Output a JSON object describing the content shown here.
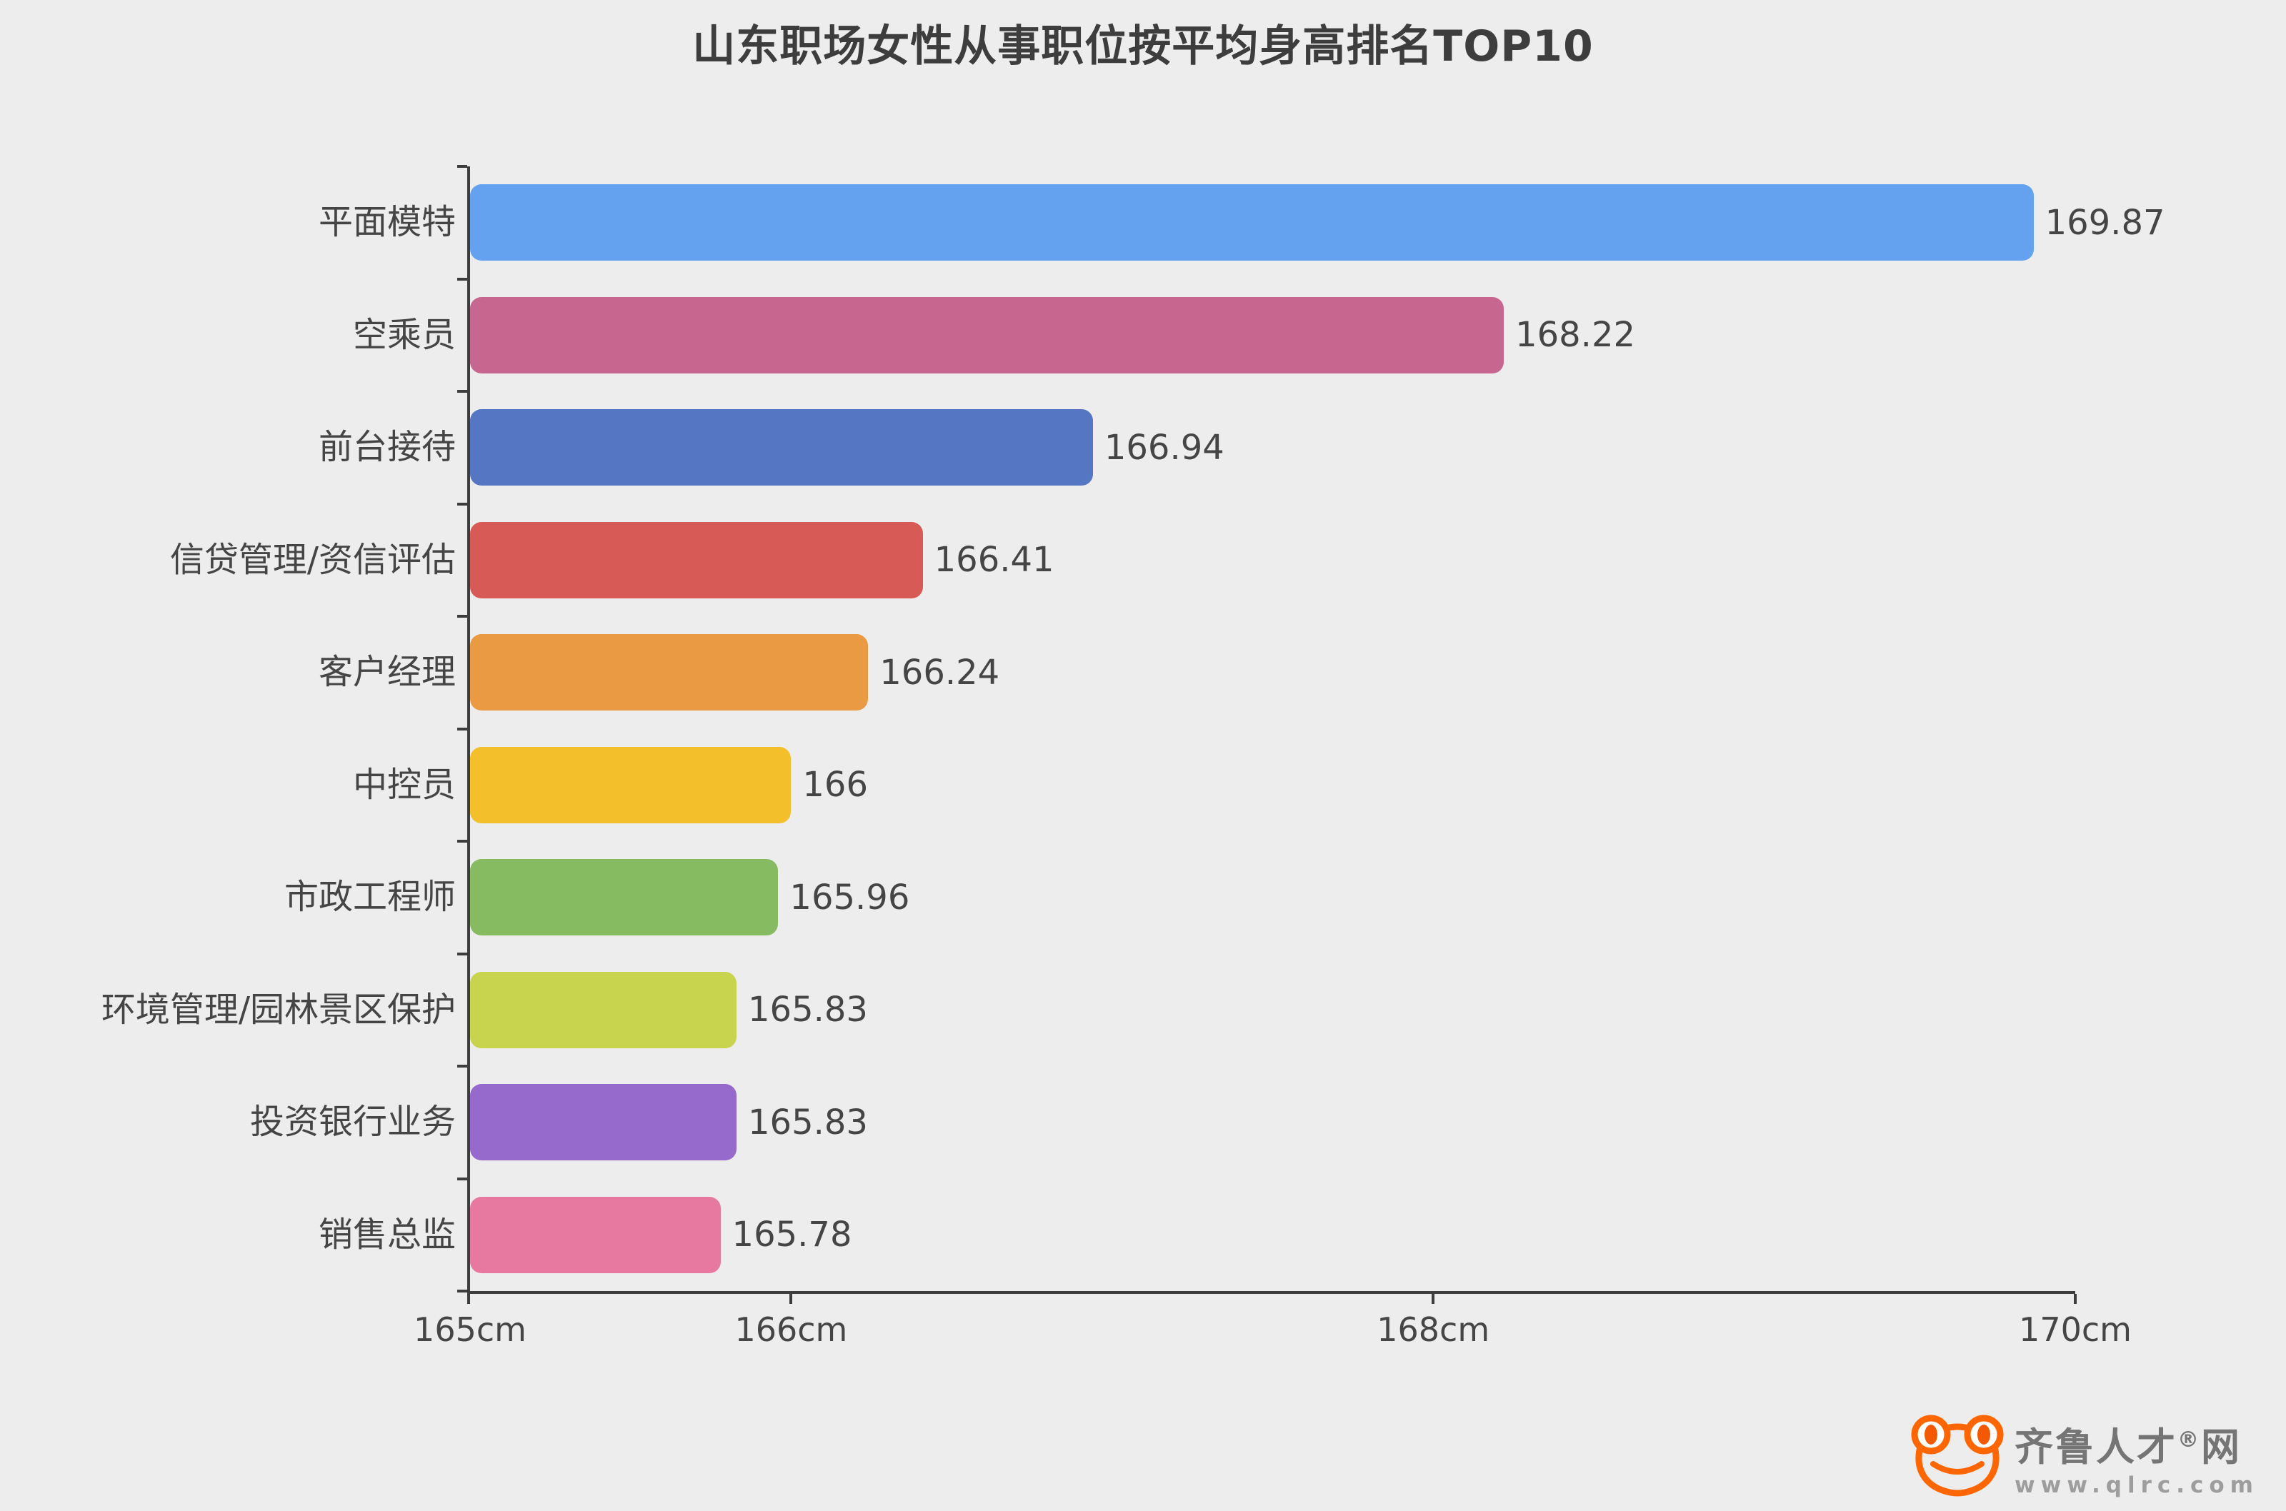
{
  "title": "山东职场女性从事职位按平均身高排名TOP10",
  "chart_data": {
    "type": "bar",
    "orientation": "horizontal",
    "title": "山东职场女性从事职位按平均身高排名TOP10",
    "xlabel": "",
    "ylabel": "",
    "xlim": [
      165,
      170
    ],
    "grid": false,
    "legend": null,
    "categories": [
      "平面模特",
      "空乘员",
      "前台接待",
      "信贷管理/资信评估",
      "客户经理",
      "中控员",
      "市政工程师",
      "环境管理/园林景区保护",
      "投资银行业务",
      "销售总监"
    ],
    "values": [
      169.87,
      168.22,
      166.94,
      166.41,
      166.24,
      166,
      165.96,
      165.83,
      165.83,
      165.78
    ],
    "value_labels": [
      "169.87",
      "168.22",
      "166.94",
      "166.41",
      "166.24",
      "166",
      "165.96",
      "165.83",
      "165.83",
      "165.78"
    ],
    "bar_colors": [
      "#64a2f0",
      "#c76790",
      "#5577c3",
      "#d85a56",
      "#e99a42",
      "#f3c02c",
      "#87bb62",
      "#c8d34e",
      "#9669cd",
      "#e779a1"
    ],
    "x_ticks": [
      {
        "label": "165cm",
        "value": 165
      },
      {
        "label": "166cm",
        "value": 166
      },
      {
        "label": "168cm",
        "value": 168
      },
      {
        "label": "170cm",
        "value": 170
      }
    ]
  },
  "colors": {
    "background": "#ededed",
    "axis": "#3d3d3d",
    "title_text": "#3d3d3d",
    "label_text": "#454545"
  },
  "logo": {
    "brand_prefix": "齐鲁人才",
    "reg_mark": "®",
    "brand_suffix": "网",
    "url": "www.qlrc.com",
    "frog_color": "#ff6600",
    "pupil_color": "#f25900"
  }
}
